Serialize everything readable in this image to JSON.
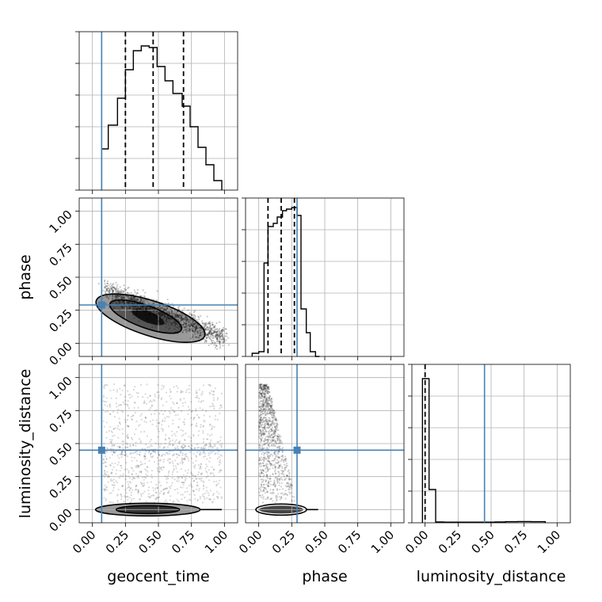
{
  "truth_color": "#4682b4",
  "chart_data": {
    "type": "corner",
    "parameters": [
      "geocent_time",
      "phase",
      "luminosity_distance"
    ],
    "axis_range": [
      -0.1,
      1.1
    ],
    "ticks": [
      0,
      0.25,
      0.5,
      0.75,
      1.0
    ],
    "tick_labels": [
      "0.00",
      "0.25",
      "0.50",
      "0.75",
      "1.00"
    ],
    "grid": true,
    "truths": {
      "geocent_time": 0.07,
      "phase": 0.29,
      "luminosity_distance": 0.45
    },
    "quantiles": {
      "geocent_time": [
        0.25,
        0.46,
        0.69
      ],
      "phase": [
        0.07,
        0.17,
        0.27
      ],
      "luminosity_distance": [
        0.0
      ]
    },
    "histograms": {
      "geocent_time": {
        "bin_edges": [
          0.07,
          0.12,
          0.19,
          0.25,
          0.31,
          0.37,
          0.43,
          0.49,
          0.55,
          0.61,
          0.68,
          0.74,
          0.8,
          0.86,
          0.92,
          0.98
        ],
        "counts": [
          0.26,
          0.41,
          0.58,
          0.76,
          0.88,
          0.91,
          0.9,
          0.78,
          0.69,
          0.61,
          0.53,
          0.4,
          0.27,
          0.16,
          0.06
        ]
      },
      "phase": {
        "bin_edges": [
          -0.05,
          0.0,
          0.04,
          0.07,
          0.11,
          0.14,
          0.18,
          0.21,
          0.25,
          0.29,
          0.32,
          0.36,
          0.39,
          0.43,
          0.46
        ],
        "counts": [
          0.02,
          0.03,
          0.59,
          0.82,
          0.84,
          0.88,
          0.92,
          0.93,
          0.94,
          0.89,
          0.3,
          0.15,
          0.03,
          0.0
        ]
      },
      "luminosity_distance": {
        "bin_edges": [
          -0.02,
          0.03,
          0.08,
          0.14,
          0.21,
          0.29,
          0.37,
          0.45,
          0.53,
          0.61,
          0.7,
          0.8,
          0.91
        ],
        "counts": [
          0.91,
          0.21,
          0.005,
          0.004,
          0.004,
          0.004,
          0.004,
          0.004,
          0.005,
          0.007,
          0.008,
          0.007
        ]
      }
    },
    "density_2d": {
      "phase_vs_geocent_time": {
        "relation": "negative",
        "peak": [
          0.42,
          0.2
        ],
        "extent_x": [
          0.1,
          1.0
        ],
        "extent_y": [
          0.02,
          0.42
        ]
      },
      "luminosity_distance_vs_geocent_time": {
        "core": [
          0.42,
          0.0
        ],
        "scatter_y": [
          0.05,
          0.95
        ]
      },
      "luminosity_distance_vs_phase": {
        "core": [
          0.17,
          0.0
        ],
        "scatter_y": [
          0.05,
          0.95
        ]
      }
    }
  }
}
